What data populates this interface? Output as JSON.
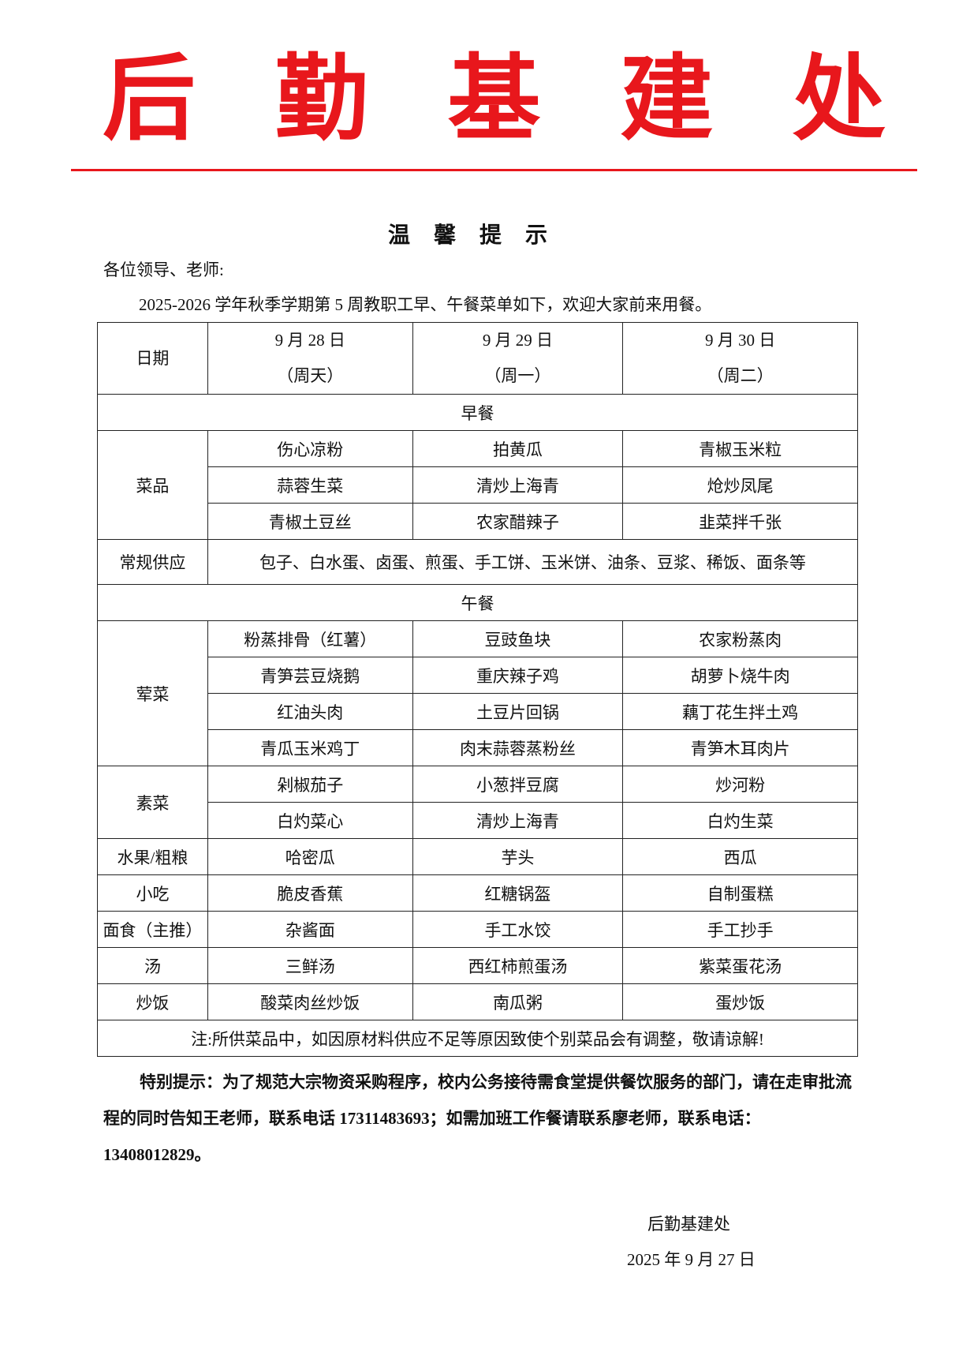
{
  "org_title": [
    "后",
    "勤",
    "基",
    "建",
    "处"
  ],
  "notice_title": "温馨提示",
  "greeting": "各位领导、老师:",
  "intro": "2025-2026 学年秋季学期第 5 周教职工早、午餐菜单如下，欢迎大家前来用餐。",
  "table": {
    "date_label": "日期",
    "dates": [
      {
        "date": "9 月 28 日",
        "weekday": "（周天）"
      },
      {
        "date": "9 月 29 日",
        "weekday": "（周一）"
      },
      {
        "date": "9 月 30 日",
        "weekday": "（周二）"
      }
    ],
    "breakfast": {
      "title": "早餐",
      "dishes_label": "菜品",
      "dishes": [
        [
          "伤心凉粉",
          "拍黄瓜",
          "青椒玉米粒"
        ],
        [
          "蒜蓉生菜",
          "清炒上海青",
          "炝炒凤尾"
        ],
        [
          "青椒土豆丝",
          "农家醋辣子",
          "韭菜拌千张"
        ]
      ],
      "regular_label": "常规供应",
      "regular": "包子、白水蛋、卤蛋、煎蛋、手工饼、玉米饼、油条、豆浆、稀饭、面条等"
    },
    "lunch": {
      "title": "午餐",
      "groups": [
        {
          "label": "荤菜",
          "rows": [
            [
              "粉蒸排骨（红薯）",
              "豆豉鱼块",
              "农家粉蒸肉"
            ],
            [
              "青笋芸豆烧鹅",
              "重庆辣子鸡",
              "胡萝卜烧牛肉"
            ],
            [
              "红油头肉",
              "土豆片回锅",
              "藕丁花生拌土鸡"
            ],
            [
              "青瓜玉米鸡丁",
              "肉末蒜蓉蒸粉丝",
              "青笋木耳肉片"
            ]
          ]
        },
        {
          "label": "素菜",
          "rows": [
            [
              "剁椒茄子",
              "小葱拌豆腐",
              "炒河粉"
            ],
            [
              "白灼菜心",
              "清炒上海青",
              "白灼生菜"
            ]
          ]
        },
        {
          "label": "水果/粗粮",
          "rows": [
            [
              "哈密瓜",
              "芋头",
              "西瓜"
            ]
          ]
        },
        {
          "label": "小吃",
          "rows": [
            [
              "脆皮香蕉",
              "红糖锅盔",
              "自制蛋糕"
            ]
          ]
        },
        {
          "label": "面食（主推）",
          "rows": [
            [
              "杂酱面",
              "手工水饺",
              "手工抄手"
            ]
          ]
        },
        {
          "label": "汤",
          "rows": [
            [
              "三鲜汤",
              "西红柿煎蛋汤",
              "紫菜蛋花汤"
            ]
          ]
        },
        {
          "label": "炒饭",
          "rows": [
            [
              "酸菜肉丝炒饭",
              "南瓜粥",
              "蛋炒饭"
            ]
          ]
        }
      ]
    },
    "note": "注:所供菜品中，如因原材料供应不足等原因致使个别菜品会有调整，敬请谅解!"
  },
  "special_notice": "特别提示：为了规范大宗物资采购程序，校内公务接待需食堂提供餐饮服务的部门，请在走审批流程的同时告知王老师，联系电话 17311483693；如需加班工作餐请联系廖老师，联系电话：13408012829。",
  "signature": "后勤基建处",
  "sign_date": "2025 年 9 月 27 日",
  "colors": {
    "accent_red": "#e8171c"
  }
}
